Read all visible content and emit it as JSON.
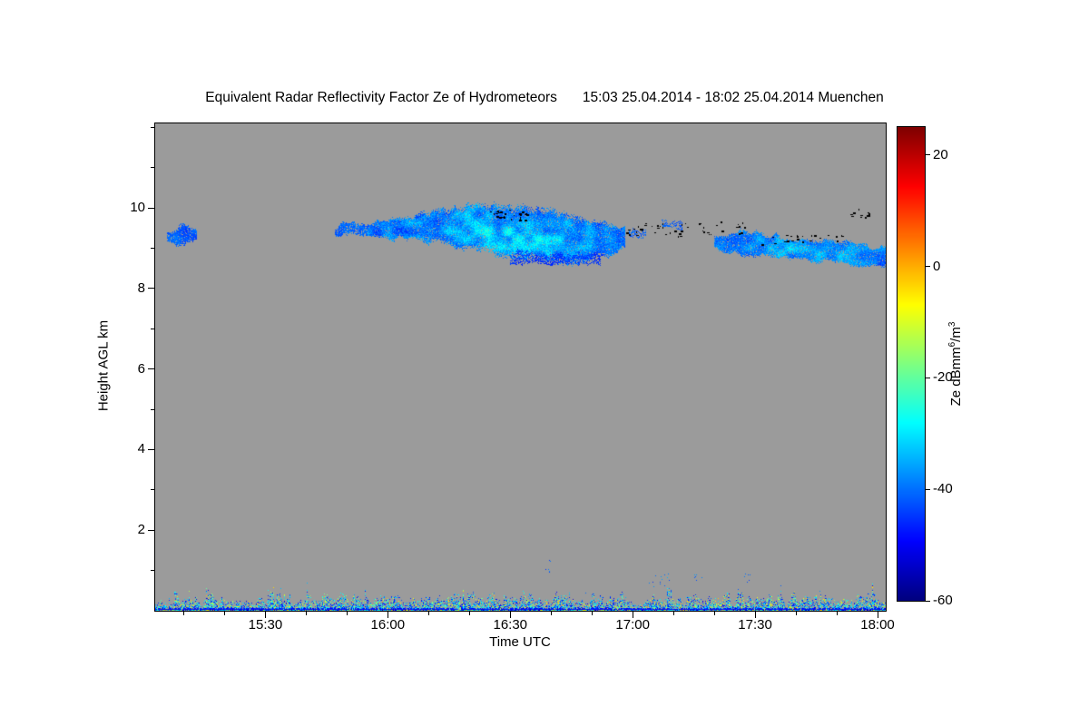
{
  "chart_data": {
    "type": "heatmap",
    "title": "Equivalent Radar Reflectivity Factor Ze of Hydrometeors",
    "subtitle": "15:03 25.04.2014 - 18:02 25.04.2014 Muenchen",
    "xlabel": "Time UTC",
    "ylabel": "Height AGL km",
    "x_start": "15:03",
    "x_end": "18:02",
    "xticks": [
      "15:30",
      "16:00",
      "16:30",
      "17:00",
      "17:30",
      "18:00"
    ],
    "x_minor_step_min": 10,
    "ylim": [
      0,
      12.1
    ],
    "yticks": [
      2,
      4,
      6,
      8,
      10
    ],
    "y_minor_step": 1,
    "background_color": "#9b9b9b",
    "colorbar": {
      "label_prefix": "Ze dBmm",
      "label_sup1": "6",
      "label_mid": "/m",
      "label_sup2": "3",
      "min": -60,
      "max": 25,
      "ticks": [
        20,
        0,
        -20,
        -40,
        -60
      ]
    },
    "features": [
      {
        "kind": "cloud",
        "name": "early-blob",
        "t0": "15:06",
        "t1": "15:13",
        "top": [
          9.45,
          9.58,
          9.5
        ],
        "base": [
          9.12,
          9.05,
          9.18
        ],
        "ze": [
          -47,
          -36
        ],
        "density": 0.85
      },
      {
        "kind": "cloud",
        "name": "pre-band",
        "t0": "15:47",
        "t1": "15:56",
        "top": [
          9.6,
          9.68,
          9.62
        ],
        "base": [
          9.32,
          9.27,
          9.33
        ],
        "ze": [
          -46,
          -36
        ],
        "density": 0.8
      },
      {
        "kind": "cloud",
        "name": "main-band",
        "t0": "15:55",
        "t1": "16:58",
        "top": [
          9.68,
          9.9,
          10.12,
          10.08,
          9.9,
          9.55
        ],
        "base": [
          9.28,
          9.18,
          8.95,
          8.72,
          8.6,
          8.95
        ],
        "ze": [
          -48,
          -31
        ],
        "density": 0.95,
        "bright": 0.9,
        "bright_f": 0.55
      },
      {
        "kind": "cloud",
        "name": "virga",
        "t0": "16:30",
        "t1": "16:52",
        "top": [
          8.95,
          8.85
        ],
        "base": [
          8.62,
          8.55
        ],
        "ze": [
          -48,
          -41
        ],
        "density": 0.5
      },
      {
        "kind": "cloud",
        "name": "fragment-1",
        "t0": "16:59",
        "t1": "17:03",
        "top": [
          9.5
        ],
        "base": [
          9.28
        ],
        "ze": [
          -46,
          -38
        ],
        "density": 0.5
      },
      {
        "kind": "cloud",
        "name": "fragment-2",
        "t0": "17:07",
        "t1": "17:12",
        "top": [
          9.72,
          9.66
        ],
        "base": [
          9.48,
          9.44
        ],
        "ze": [
          -45,
          -38
        ],
        "density": 0.45
      },
      {
        "kind": "cloud",
        "name": "late-band",
        "t0": "17:20",
        "t1": "18:02",
        "top": [
          9.32,
          9.46,
          9.3,
          9.22,
          9.15,
          9.05
        ],
        "base": [
          8.95,
          8.85,
          8.72,
          8.68,
          8.6,
          8.55
        ],
        "ze": [
          -46,
          -32
        ],
        "density": 0.92,
        "bright": 0.7,
        "bright_f": 0.5
      },
      {
        "kind": "dots",
        "name": "black-speckles-1630",
        "color": "#000000",
        "t0": "16:25",
        "t1": "16:34",
        "h0": 9.7,
        "h1": 9.95,
        "count": 30,
        "size": 3
      },
      {
        "kind": "dots",
        "name": "black-speckles-1700",
        "color": "#000000",
        "t0": "16:58",
        "t1": "17:15",
        "h0": 9.3,
        "h1": 9.62,
        "count": 30,
        "size": 3
      },
      {
        "kind": "dots",
        "name": "black-speckles-1720",
        "color": "#000000",
        "t0": "17:16",
        "t1": "17:29",
        "h0": 9.3,
        "h1": 9.68,
        "count": 18,
        "size": 3
      },
      {
        "kind": "dots",
        "name": "black-speckles-late-top-edge",
        "color": "#000000",
        "t0": "17:30",
        "t1": "17:52",
        "h0": 9.1,
        "h1": 9.35,
        "count": 24,
        "size": 3
      },
      {
        "kind": "dots",
        "name": "black-speckles-1755",
        "color": "#000000",
        "t0": "17:52",
        "t1": "17:58",
        "h0": 9.75,
        "h1": 9.98,
        "count": 12,
        "size": 3
      },
      {
        "kind": "dots",
        "name": "low-specks-1638",
        "color": "jet",
        "ze": [
          -46,
          -36
        ],
        "t0": "16:38",
        "t1": "16:40",
        "h0": 0.95,
        "h1": 1.3,
        "count": 6,
        "size": 1
      },
      {
        "kind": "dots",
        "name": "low-specks-1705",
        "color": "jet",
        "ze": [
          -46,
          -34
        ],
        "t0": "17:04",
        "t1": "17:09",
        "h0": 0.55,
        "h1": 0.95,
        "count": 14,
        "size": 1
      },
      {
        "kind": "dots",
        "name": "low-specks-1715",
        "color": "jet",
        "ze": [
          -45,
          -36
        ],
        "t0": "17:15",
        "t1": "17:17",
        "h0": 0.65,
        "h1": 0.9,
        "count": 6,
        "size": 1
      },
      {
        "kind": "dots",
        "name": "low-specks-1727",
        "color": "jet",
        "ze": [
          -45,
          -36
        ],
        "t0": "17:27",
        "t1": "17:29",
        "h0": 0.7,
        "h1": 0.95,
        "count": 6,
        "size": 1
      },
      {
        "kind": "clutter",
        "name": "ground-clutter",
        "t0": "15:03",
        "t1": "18:02",
        "h_base": 0.02,
        "h_top_min": 0.1,
        "h_top_var": 0.45,
        "spike_prob": 0.05,
        "spike_extra": 0.35,
        "density": 0.8
      }
    ]
  }
}
